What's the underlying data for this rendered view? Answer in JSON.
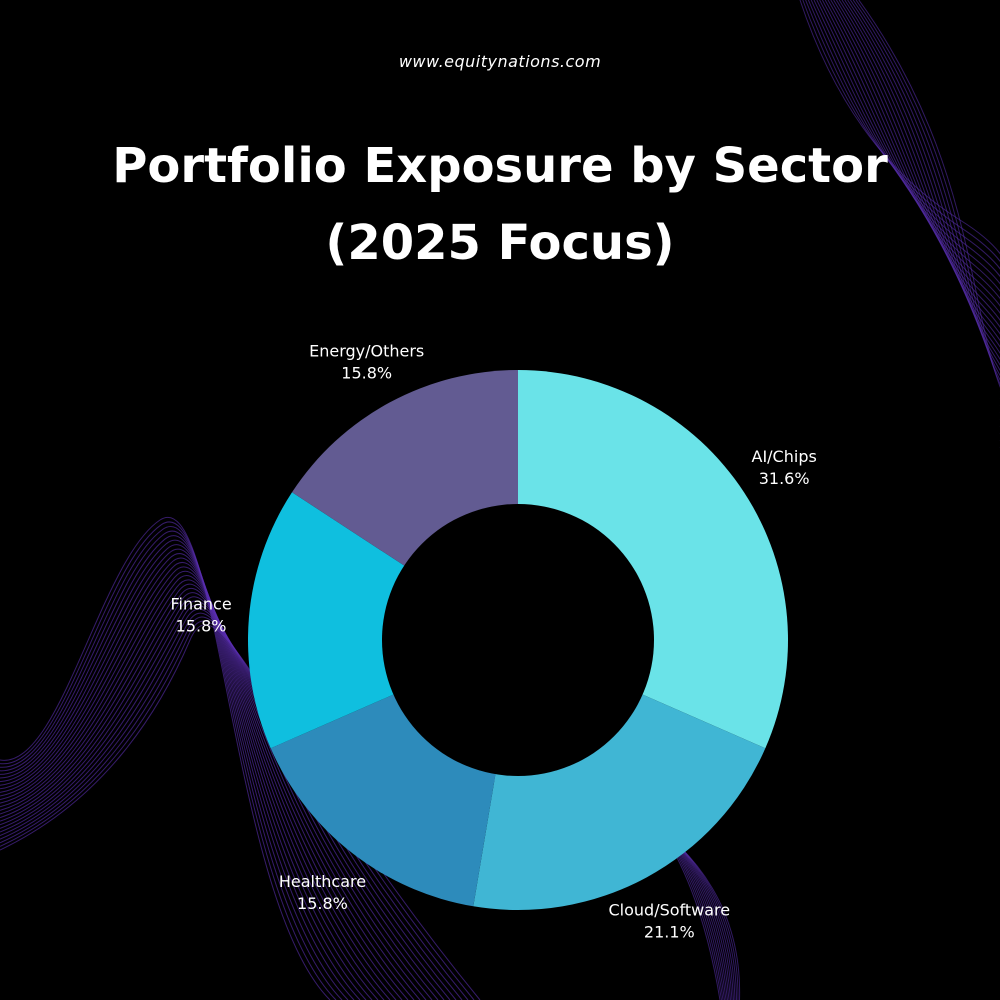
{
  "header": {
    "site_url": "www.equitynations.com",
    "title": "Portfolio Exposure by Sector (2025 Focus)"
  },
  "colors": {
    "background": "#000000",
    "text": "#ffffff",
    "decor_wave": "#5a2fb0"
  },
  "chart_data": {
    "type": "pie",
    "style": "donut",
    "title": "Portfolio Exposure by Sector (2025 Focus)",
    "slices": [
      {
        "label": "AI/Chips",
        "value": 31.6,
        "display": "31.6%",
        "color": "#6ae3e8"
      },
      {
        "label": "Cloud/Software",
        "value": 21.1,
        "display": "21.1%",
        "color": "#40b6d4"
      },
      {
        "label": "Healthcare",
        "value": 15.8,
        "display": "15.8%",
        "color": "#2d8bbb"
      },
      {
        "label": "Finance",
        "value": 15.8,
        "display": "15.8%",
        "color": "#0fbfdf"
      },
      {
        "label": "Energy/Others",
        "value": 15.8,
        "display": "15.8%",
        "color": "#625b92"
      }
    ],
    "start": "top",
    "direction": "clockwise",
    "legend": "none"
  }
}
